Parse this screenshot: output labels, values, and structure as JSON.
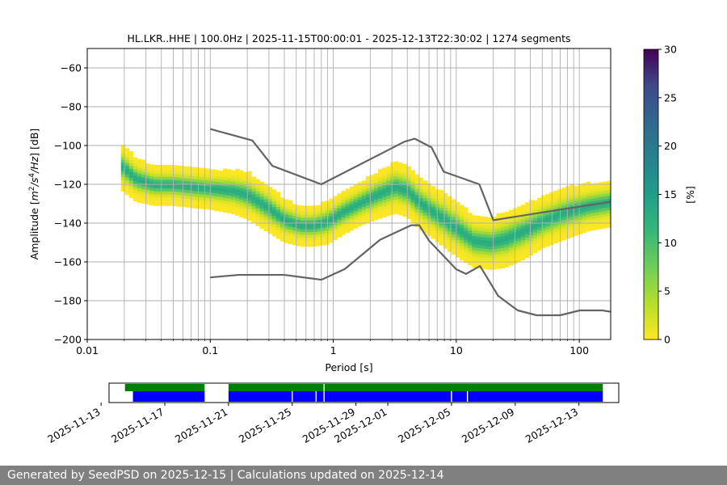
{
  "chart_data": [
    {
      "type": "heatmap",
      "title": "HL.LKR..HHE | 100.0Hz | 2025-11-15T00:00:01 - 2025-12-13T22:30:02 | 1274 segments",
      "xlabel": "Period [s]",
      "ylabel": "Amplitude [m²/s⁴/Hz] [dB]",
      "x_scale": "log",
      "xlim": [
        0.01,
        180
      ],
      "ylim": [
        -200,
        -50
      ],
      "x_ticks": [
        0.01,
        0.1,
        1,
        10,
        100
      ],
      "x_tick_labels": [
        "0.01",
        "0.1",
        "1",
        "10",
        "100"
      ],
      "y_ticks": [
        -200,
        -180,
        -160,
        -140,
        -120,
        -100,
        -80,
        -60
      ],
      "y_tick_labels": [
        "−200",
        "−180",
        "−160",
        "−140",
        "−120",
        "−100",
        "−80",
        "−60"
      ],
      "grid": true,
      "psd_period_range": [
        0.0188,
        180
      ],
      "mode_curve": {
        "period": [
          0.019,
          0.025,
          0.035,
          0.05,
          0.07,
          0.1,
          0.15,
          0.2,
          0.3,
          0.4,
          0.55,
          0.7,
          0.9,
          1.2,
          1.7,
          2.3,
          3.2,
          4.0,
          5.0,
          6.5,
          8.5,
          11,
          14,
          19,
          25,
          35,
          50,
          80,
          120,
          180
        ],
        "db": [
          -111,
          -118,
          -121,
          -121,
          -122,
          -123,
          -124,
          -126,
          -133,
          -139,
          -142,
          -142,
          -140,
          -135,
          -130,
          -126,
          -122,
          -124,
          -130,
          -135,
          -140,
          -145,
          -150,
          -151,
          -149,
          -145,
          -140,
          -135,
          -132,
          -130
        ]
      },
      "density_half_width_db": {
        "period": [
          0.019,
          0.025,
          0.035,
          0.05,
          0.07,
          0.1,
          0.15,
          0.2,
          0.3,
          0.4,
          0.55,
          0.7,
          0.9,
          1.2,
          1.7,
          2.3,
          3.2,
          4.0,
          5.0,
          6.5,
          8.5,
          11,
          14,
          19,
          25,
          35,
          50,
          80,
          120,
          180
        ],
        "db": [
          12,
          11,
          10,
          10,
          10,
          10,
          11,
          12,
          12,
          11,
          10,
          10,
          11,
          11,
          11,
          12,
          13,
          13,
          13,
          13,
          14,
          14,
          13,
          13,
          14,
          14,
          13,
          13,
          12,
          12
        ]
      },
      "nhnm": {
        "period": [
          0.1,
          0.22,
          0.32,
          0.8,
          3.8,
          4.6,
          6.3,
          7.9,
          15.4,
          20,
          354.8
        ],
        "db": [
          -91.5,
          -97.4,
          -110.5,
          -120.0,
          -98.0,
          -96.5,
          -101.0,
          -113.5,
          -120.0,
          -138.5,
          -126.0
        ]
      },
      "nlnm": {
        "period": [
          0.1,
          0.17,
          0.4,
          0.8,
          1.24,
          2.4,
          4.3,
          5.0,
          6.0,
          10.0,
          12.0,
          15.6,
          21.9,
          31.6,
          45.0,
          70.0,
          101.0,
          154.0,
          180.0
        ],
        "db": [
          -168.0,
          -166.7,
          -166.7,
          -169.2,
          -163.7,
          -148.6,
          -141.1,
          -141.1,
          -149.0,
          -163.8,
          -166.2,
          -162.1,
          -177.5,
          -185.0,
          -187.5,
          -187.5,
          -185.0,
          -185.0,
          -185.7
        ]
      },
      "colorbar": {
        "label": "[%]",
        "min": 0,
        "max": 30,
        "ticks": [
          0,
          5,
          10,
          15,
          20,
          25,
          30
        ],
        "tick_labels": [
          "0",
          "5",
          "10",
          "15",
          "20",
          "25",
          "30"
        ],
        "colormap": "viridis_r"
      },
      "colors": {
        "model_curves": "#646464",
        "grid": "#b0b0b0"
      }
    },
    {
      "type": "timeline",
      "x_tick_labels": [
        "2025-11-13",
        "2025-11-17",
        "2025-11-21",
        "2025-11-25",
        "2025-11-29",
        "2025-12-01",
        "2025-12-05",
        "2025-12-09",
        "2025-12-13"
      ],
      "x_ticks": [
        "2025-11-13",
        "2025-11-17",
        "2025-11-21",
        "2025-11-25",
        "2025-11-29",
        "2025-12-01",
        "2025-12-05",
        "2025-12-09",
        "2025-12-13"
      ],
      "xlim": [
        "2025-11-13T12:00",
        "2025-12-15T12:00"
      ],
      "used_segments": {
        "color": "#008000",
        "intervals": [
          [
            "2025-11-14T12:00",
            "2025-11-19T12:00"
          ],
          [
            "2025-11-21T00:00",
            "2025-12-14T12:00"
          ]
        ],
        "gaps": [
          "2025-11-27T00:00"
        ]
      },
      "available_data": {
        "color": "#0000ff",
        "intervals": [
          [
            "2025-11-15T00:00",
            "2025-11-19T12:00"
          ],
          [
            "2025-11-21T00:00",
            "2025-12-14T12:00"
          ]
        ],
        "gaps": [
          "2025-11-25T00:00",
          "2025-11-26T12:00",
          "2025-11-27T00:00",
          "2025-12-05T00:00",
          "2025-12-06T00:00"
        ]
      }
    }
  ],
  "footer": {
    "text": "Generated by SeedPSD on 2025-12-15 | Calculations updated on 2025-12-14"
  }
}
